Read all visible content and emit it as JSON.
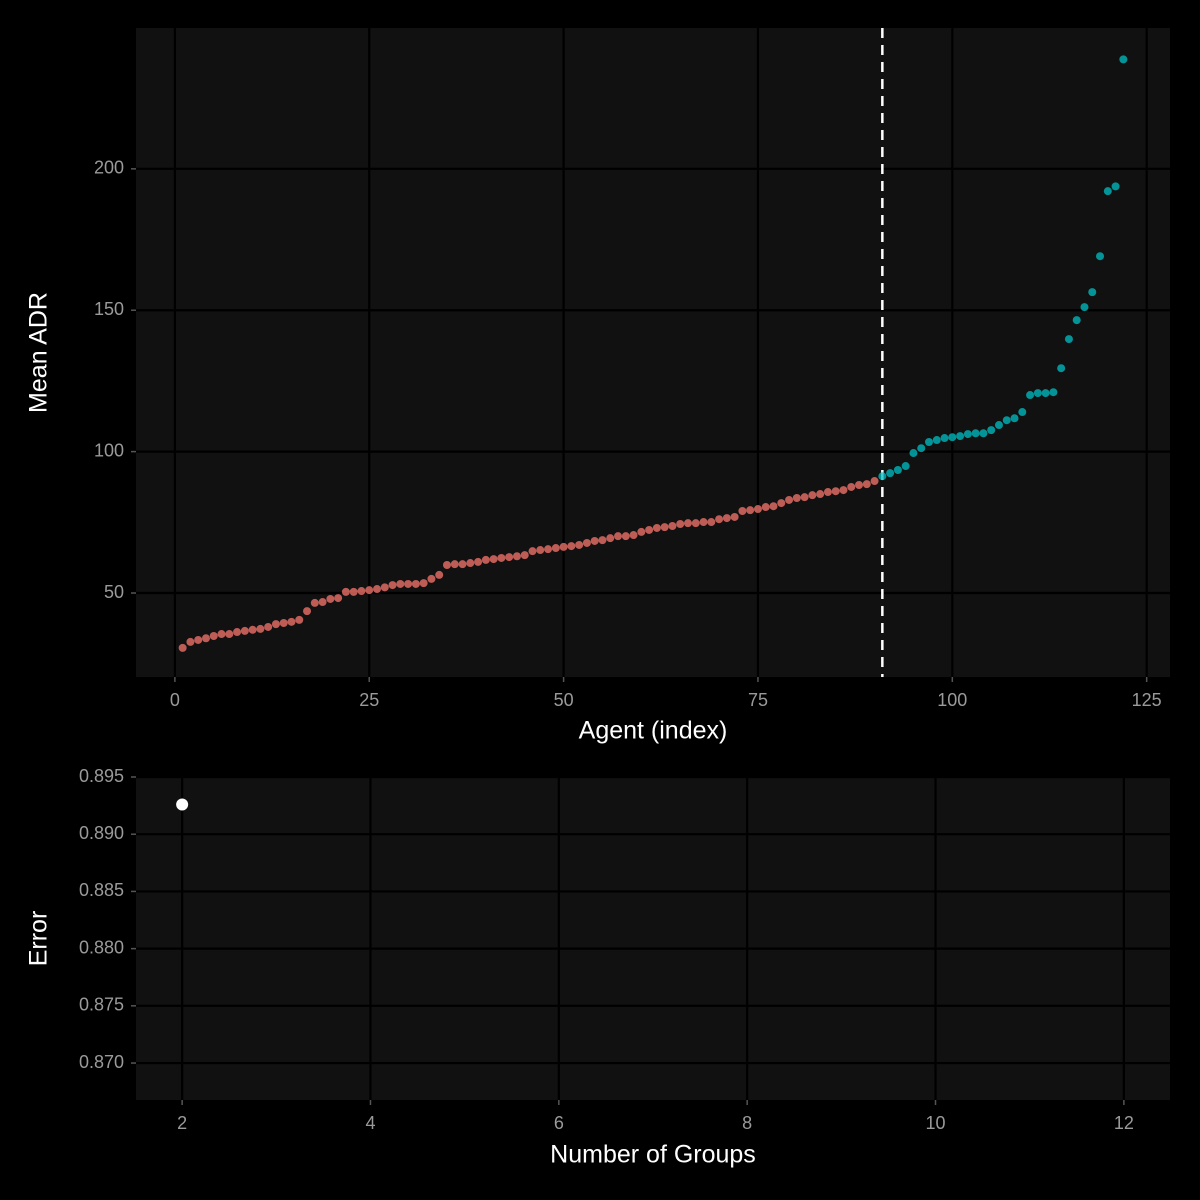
{
  "chart_data": [
    {
      "type": "scatter",
      "x_label": "Agent (index)",
      "y_label": "Mean ADR",
      "xlim": [
        -5,
        128
      ],
      "ylim": [
        20.3,
        249.8
      ],
      "xticks": [
        0,
        25,
        50,
        75,
        100,
        125
      ],
      "yticks": [
        50,
        100,
        150,
        200
      ],
      "grid": true,
      "opacity": 0.75,
      "point_radius": 4,
      "vline_x": 91,
      "vline_color": "#ffffff",
      "series": [
        {
          "color": "#F8766D",
          "x": [
            1,
            2,
            3,
            4,
            5,
            6,
            7,
            8,
            9,
            10,
            11,
            12,
            13,
            14,
            15,
            16,
            17,
            18,
            19,
            20,
            21,
            22,
            23,
            24,
            25,
            26,
            27,
            28,
            29,
            30,
            31,
            32,
            33,
            34,
            35,
            36,
            37,
            38,
            39,
            40,
            41,
            42,
            43,
            44,
            45,
            46,
            47,
            48,
            49,
            50,
            51,
            52,
            53,
            54,
            55,
            56,
            57,
            58,
            59,
            60,
            61,
            62,
            63,
            64,
            65,
            66,
            67,
            68,
            69,
            70,
            71,
            72,
            73,
            74,
            75,
            76,
            77,
            78,
            79,
            80,
            81,
            82,
            83,
            84,
            85,
            86,
            87,
            88,
            89,
            90
          ],
          "values": [
            30.6,
            32.7,
            33.4,
            34,
            34.8,
            35.5,
            35.5,
            36.2,
            36.6,
            37,
            37.3,
            38,
            39,
            39.4,
            39.8,
            40.5,
            43.6,
            46.5,
            46.8,
            47.9,
            48.2,
            50.4,
            50.4,
            50.7,
            51,
            51.4,
            52,
            52.8,
            53.2,
            53.2,
            53.2,
            53.5,
            55,
            56.4,
            59.9,
            60.2,
            60.2,
            60.6,
            61,
            61.7,
            62,
            62.4,
            62.7,
            63,
            63.4,
            64.8,
            65.2,
            65.5,
            65.9,
            66.3,
            66.6,
            67,
            67.7,
            68.4,
            68.7,
            69.4,
            70.1,
            70.1,
            70.5,
            71.6,
            72.3,
            73,
            73.3,
            73.7,
            74.4,
            74.7,
            74.7,
            75.1,
            75.1,
            76.1,
            76.5,
            76.9,
            79,
            79.3,
            79.7,
            80.4,
            80.7,
            81.8,
            82.9,
            83.6,
            83.9,
            84.6,
            85,
            85.7,
            86,
            86.4,
            87.5,
            88.2,
            88.5,
            89.6
          ]
        },
        {
          "color": "#00BFC4",
          "x": [
            91,
            92,
            93,
            94,
            95,
            96,
            97,
            98,
            99,
            100,
            101,
            102,
            103,
            104,
            105,
            106,
            107,
            108,
            109,
            110,
            111,
            112,
            113,
            114,
            115,
            116,
            117,
            118,
            119,
            120,
            121,
            122
          ],
          "values": [
            91.3,
            92.4,
            93.5,
            94.9,
            99.5,
            101.2,
            103.4,
            104.1,
            104.8,
            105.1,
            105.5,
            106.2,
            106.5,
            106.5,
            107.6,
            109.4,
            111.1,
            111.8,
            114,
            120,
            120.7,
            120.7,
            121,
            129.5,
            139.8,
            146.5,
            151.1,
            156.4,
            169.1,
            192.1,
            193.8,
            238.7
          ]
        }
      ]
    },
    {
      "type": "scatter",
      "x_label": "Number of Groups",
      "y_label": "Error",
      "xlim": [
        1.51,
        12.49
      ],
      "ylim": [
        0.86677,
        0.895
      ],
      "xticks": [
        2,
        4,
        6,
        8,
        10,
        12
      ],
      "yticks": [
        {
          "value": 0.87,
          "label": "0.870"
        },
        0.875,
        {
          "value": 0.88,
          "label": "0.880"
        },
        0.885,
        {
          "value": 0.89,
          "label": "0.890"
        },
        0.895
      ],
      "grid": true,
      "opacity": 1,
      "point_radius": 6,
      "series": [
        {
          "color": "#ffffff",
          "x": [
            2
          ],
          "values": [
            0.8926
          ]
        }
      ]
    }
  ]
}
